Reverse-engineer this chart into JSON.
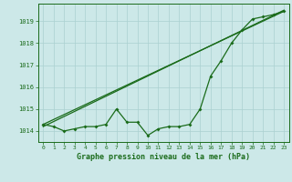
{
  "title": "Graphe pression niveau de la mer (hPa)",
  "bg_color": "#cce8e8",
  "grid_color": "#aad0d0",
  "line_color": "#1a6b1a",
  "x_ticks": [
    0,
    1,
    2,
    3,
    4,
    5,
    6,
    7,
    8,
    9,
    10,
    11,
    12,
    13,
    14,
    15,
    16,
    17,
    18,
    19,
    20,
    21,
    22,
    23
  ],
  "ylim": [
    1013.5,
    1019.8
  ],
  "yticks": [
    1014,
    1015,
    1016,
    1017,
    1018,
    1019
  ],
  "series_x": [
    0,
    1,
    2,
    3,
    4,
    5,
    6,
    7,
    8,
    9,
    10,
    11,
    12,
    13,
    14,
    15,
    16,
    17,
    18,
    19,
    20,
    21,
    22,
    23
  ],
  "s1": [
    1014.3,
    1014.2,
    1014.0,
    1014.1,
    1014.2,
    1014.2,
    1014.3,
    1015.0,
    1014.4,
    1014.4,
    1013.8,
    1014.1,
    1014.2,
    1014.2,
    1014.3,
    1015.0,
    1016.5,
    1017.2,
    1018.0,
    1018.6,
    1019.1,
    1019.2,
    1019.3,
    1019.45
  ],
  "trend1_x": [
    0,
    23
  ],
  "trend1_y": [
    1014.3,
    1019.45
  ],
  "trend2_x": [
    0,
    23
  ],
  "trend2_y": [
    1014.2,
    1019.5
  ],
  "figsize": [
    3.2,
    2.0
  ],
  "dpi": 100
}
